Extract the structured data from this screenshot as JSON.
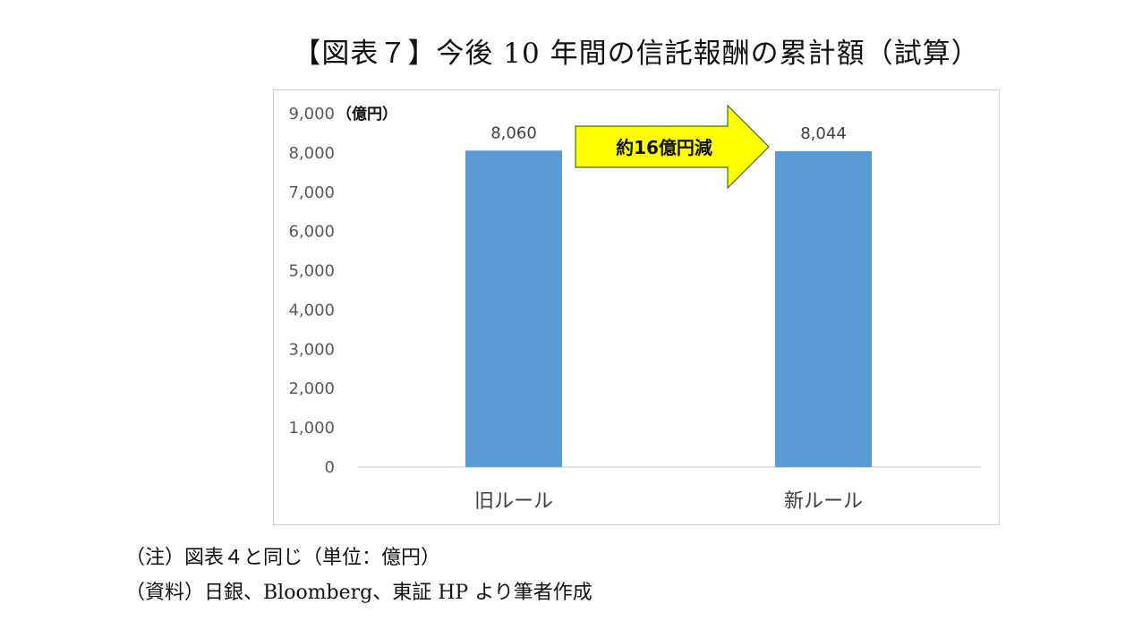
{
  "title": "【図表７】今後 10 年間の信託報酬の累計額（試算）",
  "chart_data": {
    "type": "bar",
    "categories": [
      "旧ルール",
      "新ルール"
    ],
    "values": [
      8060,
      8044
    ],
    "value_labels": [
      "8,060",
      "8,044"
    ],
    "yticks": [
      "0",
      "1,000",
      "2,000",
      "3,000",
      "4,000",
      "5,000",
      "6,000",
      "7,000",
      "8,000",
      "9,000"
    ],
    "ylim": [
      0,
      9000
    ],
    "unit_label": "（億円）",
    "bar_color": "#5b9bd5",
    "grid": false,
    "annotation": {
      "text": "約16億円減",
      "shape": "right-arrow",
      "fill": "#ffff00",
      "stroke": "#3a6f2a"
    }
  },
  "notes": {
    "note": "（注）図表４と同じ（単位：億円）",
    "source": "（資料）日銀、Bloomberg、東証 HP より筆者作成"
  },
  "colors": {
    "axis_line": "#d9d9d9",
    "tick_text": "#595959",
    "category_text": "#404040",
    "frame": "#d0d0d0"
  }
}
